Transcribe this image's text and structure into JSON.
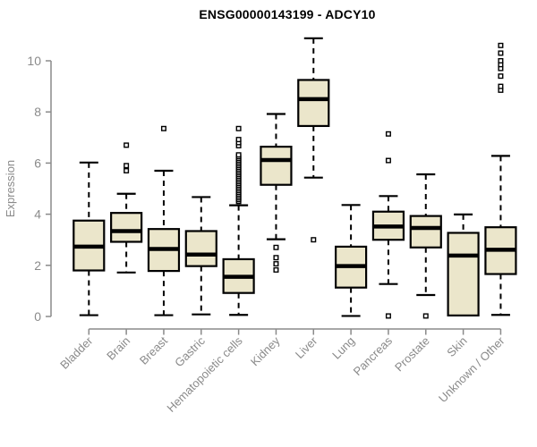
{
  "title": "ENSG00000143199 - ADCY10",
  "colors": {
    "background": "#ffffff",
    "title": "#000000",
    "axis": "#8a8a8a",
    "box_fill": "#EBE6CB",
    "box_stroke": "#000000",
    "median": "#000000",
    "whisker": "#000000",
    "outlier_stroke": "#000000",
    "outlier_fill": "#ffffff"
  },
  "chart_data": {
    "type": "boxplot",
    "title": "ENSG00000143199 - ADCY10",
    "xlabel": "",
    "ylabel": "Expression",
    "ylim": [
      0,
      11.1
    ],
    "yticks": [
      0,
      2,
      4,
      6,
      8,
      10
    ],
    "grid": false,
    "legend": false,
    "categories": [
      "Bladder",
      "Brain",
      "Breast",
      "Gastric",
      "Hematopoietic cells",
      "Kidney",
      "Liver",
      "Lung",
      "Pancreas",
      "Prostate",
      "Skin",
      "Unknown / Other"
    ],
    "series": [
      {
        "category": "Bladder",
        "low": 0.05,
        "q1": 1.8,
        "median": 2.73,
        "q3": 3.75,
        "high": 6.02,
        "outliers": []
      },
      {
        "category": "Brain",
        "low": 1.72,
        "q1": 2.92,
        "median": 3.34,
        "q3": 4.05,
        "high": 4.8,
        "outliers": [
          5.7,
          5.9,
          6.7
        ]
      },
      {
        "category": "Breast",
        "low": 0.05,
        "q1": 1.78,
        "median": 2.64,
        "q3": 3.42,
        "high": 5.7,
        "outliers": [
          7.35
        ]
      },
      {
        "category": "Gastric",
        "low": 0.08,
        "q1": 1.97,
        "median": 2.42,
        "q3": 3.34,
        "high": 4.67,
        "outliers": []
      },
      {
        "category": "Hematopoietic cells",
        "low": 0.06,
        "q1": 0.92,
        "median": 1.55,
        "q3": 2.24,
        "high": 4.35,
        "outliers": [
          4.5,
          4.57,
          4.64,
          4.71,
          4.78,
          4.85,
          4.92,
          4.99,
          5.06,
          5.13,
          5.2,
          5.27,
          5.34,
          5.41,
          5.48,
          5.55,
          5.62,
          5.69,
          5.76,
          5.83,
          5.9,
          5.97,
          6.04,
          6.11,
          6.18,
          6.25,
          6.32,
          6.68,
          6.8,
          6.92,
          7.35
        ]
      },
      {
        "category": "Kidney",
        "low": 3.02,
        "q1": 5.15,
        "median": 6.12,
        "q3": 6.64,
        "high": 7.92,
        "outliers": [
          1.82,
          2.06,
          2.3,
          2.7
        ]
      },
      {
        "category": "Liver",
        "low": 5.43,
        "q1": 7.45,
        "median": 8.5,
        "q3": 9.25,
        "high": 10.88,
        "outliers": [
          3.0
        ]
      },
      {
        "category": "Lung",
        "low": 0.02,
        "q1": 1.13,
        "median": 1.97,
        "q3": 2.73,
        "high": 4.36,
        "outliers": []
      },
      {
        "category": "Pancreas",
        "low": 1.27,
        "q1": 3.0,
        "median": 3.52,
        "q3": 4.1,
        "high": 4.71,
        "outliers": [
          0.02,
          6.1,
          7.14
        ]
      },
      {
        "category": "Prostate",
        "low": 0.84,
        "q1": 2.7,
        "median": 3.46,
        "q3": 3.93,
        "high": 5.56,
        "outliers": [
          0.02
        ]
      },
      {
        "category": "Skin",
        "low": 0.04,
        "q1": 0.04,
        "median": 2.38,
        "q3": 3.27,
        "high": 3.99,
        "outliers": []
      },
      {
        "category": "Unknown / Other",
        "low": 0.06,
        "q1": 1.66,
        "median": 2.61,
        "q3": 3.49,
        "high": 6.28,
        "outliers": [
          8.85,
          9.0,
          9.4,
          9.7,
          9.85,
          10.0,
          10.3,
          10.6
        ]
      }
    ]
  }
}
